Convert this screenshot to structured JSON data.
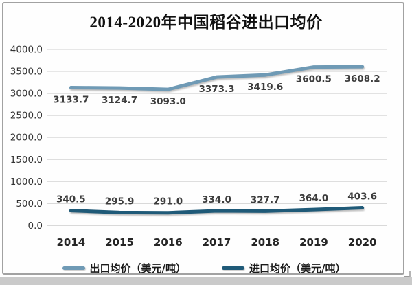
{
  "chart_data": {
    "type": "line",
    "title": "2014-2020年中国稻谷进出口均价",
    "categories": [
      "2014",
      "2015",
      "2016",
      "2017",
      "2018",
      "2019",
      "2020"
    ],
    "series": [
      {
        "id": "export-avg-price",
        "name": "出口均价（美元/吨）",
        "color": "#6f9ab5",
        "values": [
          3133.7,
          3124.7,
          3093.0,
          3373.3,
          3419.6,
          3600.5,
          3608.2
        ],
        "data_labels": [
          "3133.7",
          "3124.7",
          "3093.0",
          "3373.3",
          "3419.6",
          "3600.5",
          "3608.2"
        ],
        "data_label_position": "below"
      },
      {
        "id": "import-avg-price",
        "name": "进口均价（美元/吨）",
        "color": "#1f5a78",
        "values": [
          340.5,
          295.9,
          291.0,
          334.0,
          327.7,
          364.0,
          403.6
        ],
        "data_labels": [
          "340.5",
          "295.9",
          "291.0",
          "334.0",
          "327.7",
          "364.0",
          "403.6"
        ],
        "data_label_position": "above"
      }
    ],
    "y_axis": {
      "min": 0,
      "max": 4000,
      "step": 500,
      "tick_labels": [
        "4000.0",
        "3500.0",
        "3000.0",
        "2500.0",
        "2000.0",
        "1500.0",
        "1000.0",
        "500.0",
        "0.0"
      ]
    },
    "grid": true,
    "legend_position": "bottom"
  },
  "colors": {
    "export_line": "#6f9ab5",
    "import_line": "#1f5a78",
    "gridline": "#d9d9d9",
    "frame_border": "#a2a2a2"
  }
}
